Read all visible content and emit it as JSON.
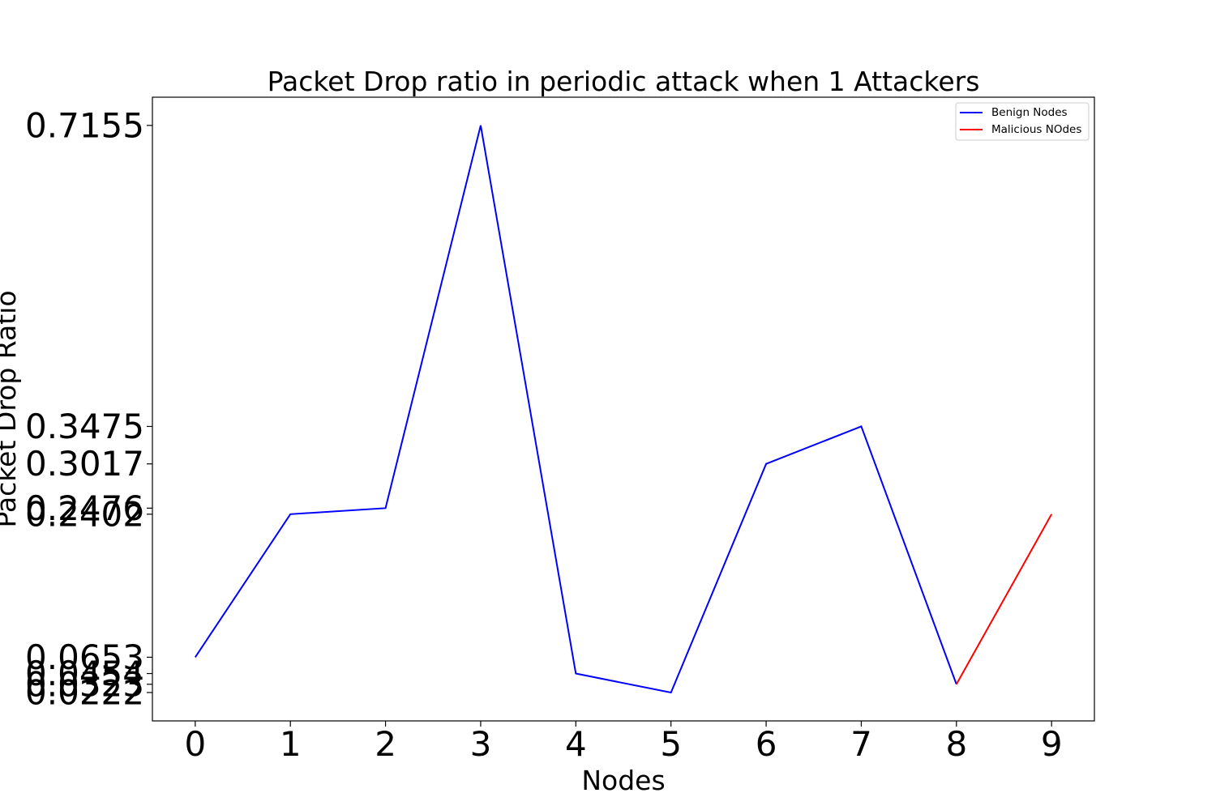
{
  "chart_data": {
    "type": "line",
    "title": "Packet Drop ratio in periodic attack when 1 Attackers",
    "xlabel": "Nodes",
    "ylabel": "Packet Drop Ratio",
    "x": [
      0,
      1,
      2,
      3,
      4,
      5,
      6,
      7,
      8,
      9
    ],
    "xticks": [
      "0",
      "1",
      "2",
      "3",
      "4",
      "5",
      "6",
      "7",
      "8",
      "9"
    ],
    "yticks": [
      0.0222,
      0.0323,
      0.0454,
      0.0653,
      0.2402,
      0.2476,
      0.3017,
      0.3475,
      0.7155
    ],
    "ytick_labels": [
      "0.0222",
      "0.0323",
      "0.0454",
      "0.0653",
      "0.2402",
      "0.2476",
      "0.3017",
      "0.3475",
      "0.7155"
    ],
    "xlim": [
      -0.45,
      9.45
    ],
    "ylim": [
      -0.0125,
      0.75
    ],
    "grid": false,
    "legend_position": "top-right",
    "series": [
      {
        "name": "Benign Nodes",
        "color": "#0000ff",
        "x": [
          0,
          1,
          2,
          3,
          4,
          5,
          6,
          7,
          8
        ],
        "values": [
          0.0653,
          0.2402,
          0.2476,
          0.7155,
          0.0454,
          0.0222,
          0.3017,
          0.3475,
          0.0323
        ]
      },
      {
        "name": "Malicious NOdes",
        "color": "#ff0000",
        "x": [
          8,
          9
        ],
        "values": [
          0.0323,
          0.2402
        ]
      }
    ]
  }
}
